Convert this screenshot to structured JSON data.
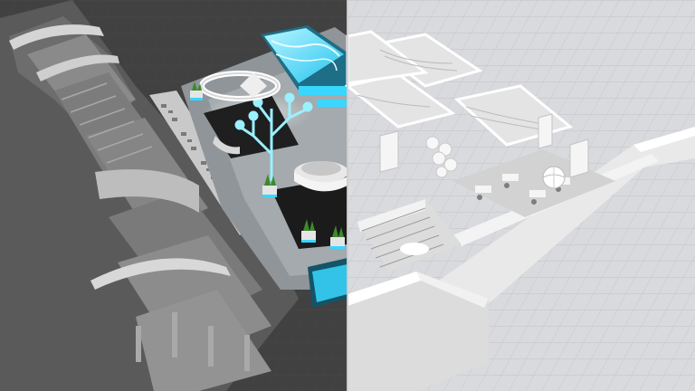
{
  "scene": {
    "description_free": true,
    "left_half": {
      "style": "shaded-render"
    },
    "right_half": {
      "style": "clay-wireframe"
    }
  },
  "colors": {
    "dark_floor": "#2b2b2b",
    "grid_floor": "#d9dadd",
    "grid_line": "#c3c5c9",
    "wall": "#e6e6e6",
    "wall_shadow": "#9a9a9a",
    "cyan": "#39d7ff",
    "cyan_glow": "#9af0ff",
    "plant": "#3c8a2c",
    "divider": "#cfcfcf"
  }
}
